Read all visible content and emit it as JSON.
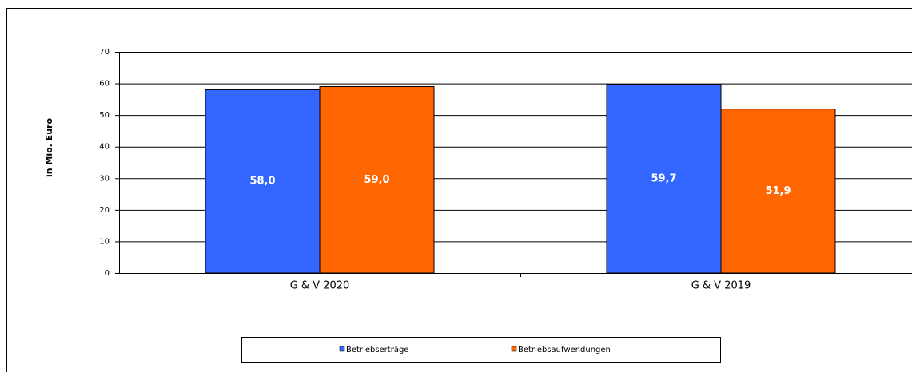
{
  "chart_data": {
    "type": "bar",
    "y_label": "in Mio. Euro",
    "categories": [
      "G & V 2020",
      "G & V 2019"
    ],
    "series": [
      {
        "name": "Betriebserträge",
        "color": "#3366ff",
        "values": [
          58.0,
          59.7
        ],
        "value_labels": [
          "58,0",
          "59,7"
        ]
      },
      {
        "name": "Betriebsaufwendungen",
        "color": "#ff6600",
        "values": [
          59.0,
          51.9
        ],
        "value_labels": [
          "59,0",
          "51,9"
        ]
      }
    ],
    "ylim": [
      0,
      70
    ],
    "yticks": [
      0,
      10,
      20,
      30,
      40,
      50,
      60,
      70
    ],
    "grid": true,
    "legend": "bottom"
  }
}
